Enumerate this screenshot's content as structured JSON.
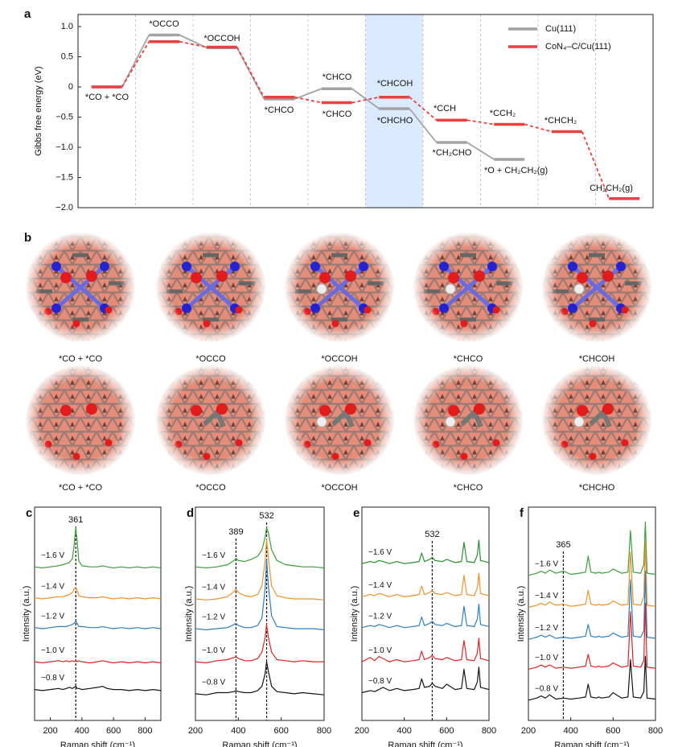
{
  "chart_data": [
    {
      "type": "energy",
      "panel": "a",
      "ylabel": "Gibbs free energy (eV)",
      "ylim": [
        -2.0,
        1.2
      ],
      "yticks": [
        {
          "value": 1.0,
          "label": "1.0"
        },
        0.5,
        0,
        {
          "value": -0.5,
          "label": "−0.5"
        },
        {
          "value": -1.0,
          "label": "−1.0"
        },
        {
          "value": -1.5,
          "label": "−1.5"
        },
        {
          "value": -2.0,
          "label": "−2.0"
        }
      ],
      "highlight": 5,
      "highlight_color": "#dbeafc",
      "series": [
        {
          "name": "Cu(111)",
          "color": "#a3a3a3",
          "linestyle": "solid",
          "values": [
            0,
            0.86,
            0.65,
            -0.2,
            -0.03,
            -0.36,
            -0.92,
            -1.2,
            null,
            null
          ]
        },
        {
          "name": "CoN₄–C/Cu(111)",
          "color": "#e8413f",
          "linestyle": "dashed",
          "values": [
            0,
            0.75,
            0.66,
            -0.17,
            -0.26,
            -0.17,
            -0.55,
            -0.62,
            -0.74,
            -1.85
          ]
        }
      ],
      "annotations": [
        "*CO + *CO",
        "*OCCO",
        "*OCCOH",
        "*CHCO",
        "*CHCO",
        "*CHCO",
        "*CHCOH",
        "*CHCHO",
        "*CCH",
        "*CH₂CHO",
        "*CCH₂",
        "*O + CH₂CH₂(g)",
        "*CHCH₂",
        "CH₂CH₂(g)"
      ]
    },
    {
      "type": "line",
      "panel": "c",
      "xlabel": "Raman shift (cm⁻¹)",
      "ylabel": "Intensity (a.u.)",
      "xlim": [
        100,
        900
      ],
      "xticks": [
        200,
        400,
        600,
        800
      ],
      "ylim": [
        0,
        10
      ],
      "vlines": [
        361
      ],
      "x": [
        100,
        150,
        200,
        250,
        280,
        300,
        320,
        340,
        350,
        361,
        370,
        380,
        400,
        450,
        500,
        530,
        560,
        600,
        650,
        700,
        750,
        800,
        850,
        900
      ],
      "series": [
        {
          "name": "−1.6 V",
          "color": "#3c9f3c",
          "values": [
            7.2,
            7.15,
            7.2,
            7.25,
            7.3,
            7.35,
            7.4,
            7.6,
            8.2,
            9.05,
            8.4,
            7.5,
            7.25,
            7.2,
            7.2,
            7.25,
            7.2,
            7.15,
            7.2,
            7.15,
            7.2,
            7.15,
            7.2,
            7.15
          ]
        },
        {
          "name": "−1.4 V",
          "color": "#f0922a",
          "values": [
            5.75,
            5.7,
            5.75,
            5.8,
            5.8,
            5.85,
            5.9,
            6.0,
            6.15,
            6.25,
            6.1,
            5.85,
            5.8,
            5.75,
            5.75,
            5.8,
            5.75,
            5.7,
            5.75,
            5.7,
            5.75,
            5.7,
            5.75,
            5.7
          ]
        },
        {
          "name": "−1.2 V",
          "color": "#2f7fc0",
          "values": [
            4.35,
            4.3,
            4.35,
            4.4,
            4.4,
            4.4,
            4.45,
            4.5,
            4.55,
            4.65,
            4.55,
            4.4,
            4.4,
            4.35,
            4.35,
            4.4,
            4.35,
            4.3,
            4.35,
            4.3,
            4.35,
            4.3,
            4.35,
            4.3
          ]
        },
        {
          "name": "−1.0 V",
          "color": "#e02424",
          "values": [
            2.75,
            2.7,
            2.75,
            2.8,
            2.75,
            2.8,
            2.75,
            2.8,
            2.75,
            2.8,
            2.75,
            2.8,
            2.75,
            2.7,
            2.75,
            2.8,
            2.75,
            2.7,
            2.75,
            2.7,
            2.75,
            2.7,
            2.75,
            2.7
          ]
        },
        {
          "name": "−0.8 V",
          "color": "#151515",
          "values": [
            1.45,
            1.4,
            1.45,
            1.5,
            1.45,
            1.5,
            1.55,
            1.5,
            1.55,
            1.6,
            1.5,
            1.5,
            1.45,
            1.5,
            1.55,
            1.6,
            1.5,
            1.45,
            1.45,
            1.4,
            1.45,
            1.4,
            1.45,
            1.4
          ]
        }
      ]
    },
    {
      "type": "line",
      "panel": "d",
      "xlabel": "Raman shift (cm⁻¹)",
      "ylabel": "Intensity (a.u.)",
      "xlim": [
        200,
        800
      ],
      "xticks": [
        200,
        400,
        600,
        800
      ],
      "ylim": [
        0,
        10
      ],
      "vlines": [
        389,
        532
      ],
      "x": [
        200,
        250,
        300,
        350,
        380,
        389,
        400,
        430,
        460,
        490,
        510,
        525,
        532,
        540,
        555,
        580,
        620,
        660,
        700,
        750,
        800
      ],
      "series": [
        {
          "name": "−1.6 V",
          "color": "#3c9f3c",
          "values": [
            7.2,
            7.15,
            7.2,
            7.3,
            7.5,
            7.6,
            7.5,
            7.45,
            7.55,
            7.7,
            8.0,
            8.6,
            9.05,
            8.8,
            8.0,
            7.5,
            7.3,
            7.25,
            7.2,
            7.2,
            7.15
          ]
        },
        {
          "name": "−1.4 V",
          "color": "#f0922a",
          "values": [
            5.7,
            5.65,
            5.7,
            5.8,
            6.05,
            6.15,
            6.0,
            5.85,
            5.8,
            5.9,
            6.3,
            7.5,
            8.5,
            7.6,
            6.3,
            5.85,
            5.75,
            5.7,
            5.7,
            5.7,
            5.65
          ]
        },
        {
          "name": "−1.2 V",
          "color": "#2f7fc0",
          "values": [
            4.3,
            4.25,
            4.3,
            4.35,
            4.5,
            4.55,
            4.45,
            4.35,
            4.35,
            4.45,
            4.8,
            6.2,
            7.55,
            6.3,
            4.9,
            4.4,
            4.35,
            4.3,
            4.3,
            4.3,
            4.25
          ]
        },
        {
          "name": "−1.0 V",
          "color": "#e02424",
          "values": [
            2.75,
            2.7,
            2.8,
            2.85,
            2.95,
            3.0,
            2.9,
            2.8,
            2.8,
            2.9,
            3.2,
            3.9,
            4.5,
            3.9,
            3.2,
            2.85,
            2.8,
            2.75,
            2.8,
            2.75,
            2.75
          ]
        },
        {
          "name": "−0.8 V",
          "color": "#151515",
          "values": [
            1.25,
            1.2,
            1.3,
            1.3,
            1.35,
            1.4,
            1.35,
            1.3,
            1.3,
            1.4,
            1.6,
            2.2,
            2.75,
            2.3,
            1.6,
            1.35,
            1.3,
            1.25,
            1.3,
            1.25,
            1.2
          ]
        }
      ]
    },
    {
      "type": "line",
      "panel": "e",
      "xlabel": "Raman shift (cm⁻¹)",
      "ylabel": "Intensity (a.u.)",
      "xlim": [
        200,
        800
      ],
      "xticks": [
        200,
        400,
        600,
        800
      ],
      "ylim": [
        0,
        10
      ],
      "vlines": [
        532
      ],
      "x": [
        200,
        240,
        260,
        280,
        300,
        330,
        365,
        400,
        440,
        470,
        482,
        495,
        520,
        532,
        545,
        580,
        600,
        640,
        670,
        682,
        695,
        730,
        745,
        752,
        760,
        800
      ],
      "series": [
        {
          "name": "−1.6 V",
          "color": "#2a8f2a",
          "values": [
            7.35,
            7.45,
            7.4,
            7.5,
            7.45,
            7.35,
            7.45,
            7.35,
            7.4,
            7.45,
            7.85,
            7.45,
            7.55,
            7.65,
            7.5,
            7.45,
            7.55,
            7.4,
            7.45,
            8.35,
            7.45,
            7.4,
            7.75,
            8.45,
            7.5,
            7.4
          ]
        },
        {
          "name": "−1.4 V",
          "color": "#f0922a",
          "values": [
            5.8,
            5.9,
            5.85,
            5.95,
            5.9,
            5.8,
            5.9,
            5.8,
            5.85,
            5.9,
            6.3,
            5.9,
            6.0,
            6.1,
            5.95,
            5.9,
            6.0,
            5.85,
            5.9,
            6.8,
            5.9,
            5.85,
            6.2,
            6.9,
            5.95,
            5.85
          ]
        },
        {
          "name": "−1.2 V",
          "color": "#2f7fc0",
          "values": [
            4.35,
            4.45,
            4.4,
            4.5,
            4.45,
            4.35,
            4.45,
            4.35,
            4.4,
            4.45,
            4.85,
            4.45,
            4.55,
            4.65,
            4.5,
            4.45,
            4.55,
            4.4,
            4.45,
            5.35,
            4.45,
            4.4,
            4.75,
            5.45,
            4.5,
            4.4
          ]
        },
        {
          "name": "−1.0 V",
          "color": "#e02424",
          "values": [
            2.75,
            2.95,
            2.8,
            3.0,
            2.9,
            2.75,
            2.85,
            2.75,
            2.8,
            2.85,
            3.25,
            2.85,
            2.95,
            3.05,
            2.9,
            2.85,
            2.95,
            2.8,
            2.85,
            3.75,
            2.85,
            2.8,
            3.15,
            3.85,
            2.9,
            2.8
          ]
        },
        {
          "name": "−0.8 V",
          "color": "#151515",
          "values": [
            1.3,
            1.4,
            1.35,
            1.45,
            1.55,
            1.4,
            1.5,
            1.4,
            1.45,
            1.5,
            1.95,
            1.55,
            1.6,
            1.75,
            1.6,
            1.5,
            1.7,
            1.45,
            1.5,
            2.4,
            1.5,
            1.45,
            1.8,
            2.5,
            1.55,
            1.45
          ]
        }
      ]
    },
    {
      "type": "line",
      "panel": "f",
      "xlabel": "Raman shift (cm⁻¹)",
      "ylabel": "Intensity (a.u.)",
      "xlim": [
        200,
        800
      ],
      "xticks": [
        200,
        400,
        600,
        800
      ],
      "ylim": [
        0,
        10
      ],
      "vlines": [
        365
      ],
      "x": [
        200,
        240,
        260,
        280,
        300,
        330,
        365,
        400,
        440,
        470,
        482,
        495,
        520,
        532,
        545,
        580,
        600,
        640,
        670,
        682,
        695,
        730,
        745,
        752,
        760,
        800
      ],
      "series": [
        {
          "name": "−1.6 V",
          "color": "#3c9f3c",
          "values": [
            6.8,
            6.9,
            7.0,
            6.9,
            7.05,
            6.9,
            7.0,
            6.85,
            6.9,
            6.95,
            7.7,
            6.95,
            6.9,
            6.95,
            6.9,
            6.95,
            7.1,
            6.9,
            6.95,
            8.9,
            6.95,
            6.9,
            7.3,
            9.3,
            6.9,
            6.85
          ]
        },
        {
          "name": "−1.4 V",
          "color": "#f0922a",
          "values": [
            5.3,
            5.4,
            5.5,
            5.4,
            5.55,
            5.4,
            5.45,
            5.35,
            5.4,
            5.45,
            6.1,
            5.45,
            5.4,
            5.45,
            5.4,
            5.45,
            5.6,
            5.4,
            5.45,
            7.9,
            5.45,
            5.4,
            5.8,
            8.4,
            5.4,
            5.35
          ]
        },
        {
          "name": "−1.2 V",
          "color": "#2f7fc0",
          "values": [
            3.8,
            3.9,
            4.0,
            3.9,
            4.0,
            3.85,
            3.9,
            3.85,
            3.9,
            3.95,
            4.5,
            3.95,
            3.9,
            3.95,
            3.9,
            3.95,
            4.1,
            3.9,
            3.95,
            6.6,
            3.95,
            3.9,
            4.2,
            7.0,
            3.9,
            3.85
          ]
        },
        {
          "name": "−1.0 V",
          "color": "#e02424",
          "values": [
            2.4,
            2.5,
            2.6,
            2.5,
            2.6,
            2.45,
            2.5,
            2.45,
            2.5,
            2.55,
            3.1,
            2.55,
            2.5,
            2.55,
            2.5,
            2.55,
            2.7,
            2.5,
            2.55,
            5.1,
            2.55,
            2.5,
            2.8,
            5.5,
            2.5,
            2.45
          ]
        },
        {
          "name": "−0.8 V",
          "color": "#151515",
          "values": [
            0.95,
            1.05,
            1.15,
            1.05,
            1.2,
            1.0,
            1.05,
            1.0,
            1.05,
            1.1,
            1.7,
            1.1,
            1.05,
            1.1,
            1.05,
            1.1,
            1.3,
            1.05,
            1.1,
            2.85,
            1.1,
            1.05,
            1.35,
            3.0,
            1.05,
            1.0
          ]
        }
      ]
    }
  ],
  "figure_b": {
    "panel": "b",
    "rows": [
      [
        {
          "label": "*CO + *CO"
        },
        {
          "label": "*OCCO"
        },
        {
          "label": "*OCCOH"
        },
        {
          "label": "*CHCO"
        },
        {
          "label": "*CHCOH",
          "color": "#2b2bd6"
        }
      ],
      [
        {
          "label": "*CO + *CO"
        },
        {
          "label": "*OCCO"
        },
        {
          "label": "*OCCOH"
        },
        {
          "label": "*CHCO"
        },
        {
          "label": "*CHCHO",
          "color": "#2b2bd6"
        }
      ]
    ]
  }
}
